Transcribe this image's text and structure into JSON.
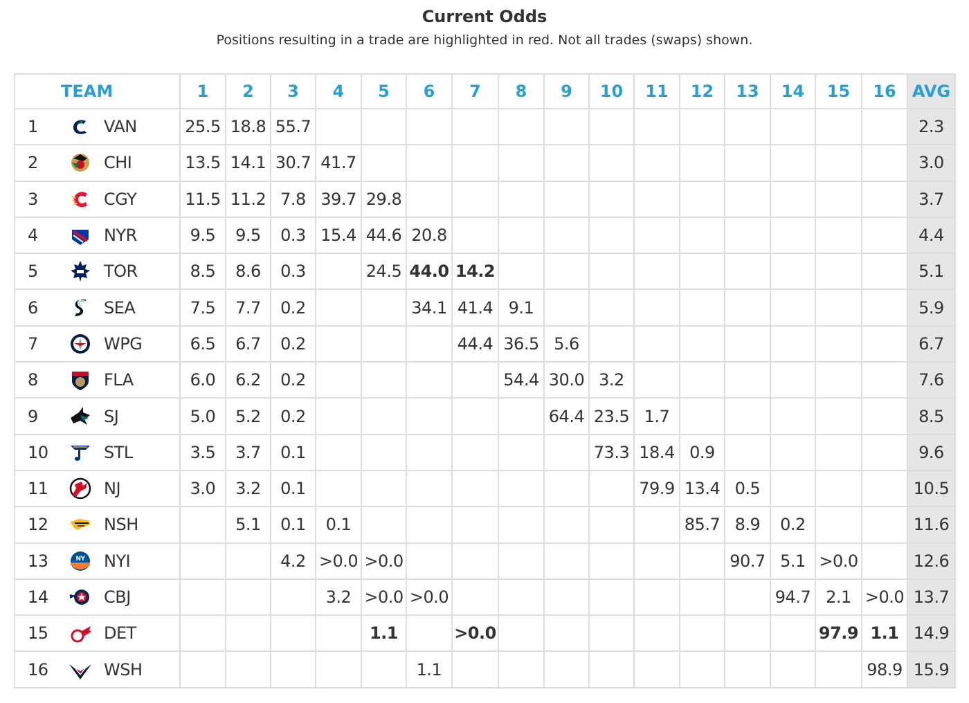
{
  "header": {
    "title": "Current Odds",
    "subtitle": "Positions resulting in a trade are highlighted in red. Not all trades (swaps) shown."
  },
  "table": {
    "columns": [
      "TEAM",
      "1",
      "2",
      "3",
      "4",
      "5",
      "6",
      "7",
      "8",
      "9",
      "10",
      "11",
      "12",
      "13",
      "14",
      "15",
      "16",
      "AVG"
    ],
    "trade_color": "#d0021b",
    "header_color": "#2a9fd6",
    "rows": [
      {
        "rank": "1",
        "team": "VAN",
        "logo": "canucks-logo-icon",
        "cells": [
          "25.5",
          "18.8",
          "55.7",
          "",
          "",
          "",
          "",
          "",
          "",
          "",
          "",
          "",
          "",
          "",
          "",
          ""
        ],
        "trade": [],
        "avg": "2.3"
      },
      {
        "rank": "2",
        "team": "CHI",
        "logo": "blackhawks-logo-icon",
        "cells": [
          "13.5",
          "14.1",
          "30.7",
          "41.7",
          "",
          "",
          "",
          "",
          "",
          "",
          "",
          "",
          "",
          "",
          "",
          ""
        ],
        "trade": [],
        "avg": "3.0"
      },
      {
        "rank": "3",
        "team": "CGY",
        "logo": "flames-logo-icon",
        "cells": [
          "11.5",
          "11.2",
          "7.8",
          "39.7",
          "29.8",
          "",
          "",
          "",
          "",
          "",
          "",
          "",
          "",
          "",
          "",
          ""
        ],
        "trade": [],
        "avg": "3.7"
      },
      {
        "rank": "4",
        "team": "NYR",
        "logo": "rangers-logo-icon",
        "cells": [
          "9.5",
          "9.5",
          "0.3",
          "15.4",
          "44.6",
          "20.8",
          "",
          "",
          "",
          "",
          "",
          "",
          "",
          "",
          "",
          ""
        ],
        "trade": [],
        "avg": "4.4"
      },
      {
        "rank": "5",
        "team": "TOR",
        "logo": "maple-leafs-logo-icon",
        "cells": [
          "8.5",
          "8.6",
          "0.3",
          "",
          "24.5",
          "44.0",
          "14.2",
          "",
          "",
          "",
          "",
          "",
          "",
          "",
          "",
          ""
        ],
        "trade": [
          5,
          6
        ],
        "avg": "5.1"
      },
      {
        "rank": "6",
        "team": "SEA",
        "logo": "kraken-logo-icon",
        "cells": [
          "7.5",
          "7.7",
          "0.2",
          "",
          "",
          "34.1",
          "41.4",
          "9.1",
          "",
          "",
          "",
          "",
          "",
          "",
          "",
          ""
        ],
        "trade": [],
        "avg": "5.9"
      },
      {
        "rank": "7",
        "team": "WPG",
        "logo": "jets-logo-icon",
        "cells": [
          "6.5",
          "6.7",
          "0.2",
          "",
          "",
          "",
          "44.4",
          "36.5",
          "5.6",
          "",
          "",
          "",
          "",
          "",
          "",
          ""
        ],
        "trade": [],
        "avg": "6.7"
      },
      {
        "rank": "8",
        "team": "FLA",
        "logo": "panthers-logo-icon",
        "cells": [
          "6.0",
          "6.2",
          "0.2",
          "",
          "",
          "",
          "",
          "54.4",
          "30.0",
          "3.2",
          "",
          "",
          "",
          "",
          "",
          ""
        ],
        "trade": [],
        "avg": "7.6"
      },
      {
        "rank": "9",
        "team": "SJ",
        "logo": "sharks-logo-icon",
        "cells": [
          "5.0",
          "5.2",
          "0.2",
          "",
          "",
          "",
          "",
          "",
          "64.4",
          "23.5",
          "1.7",
          "",
          "",
          "",
          "",
          ""
        ],
        "trade": [],
        "avg": "8.5"
      },
      {
        "rank": "10",
        "team": "STL",
        "logo": "blues-logo-icon",
        "cells": [
          "3.5",
          "3.7",
          "0.1",
          "",
          "",
          "",
          "",
          "",
          "",
          "73.3",
          "18.4",
          "0.9",
          "",
          "",
          "",
          ""
        ],
        "trade": [],
        "avg": "9.6"
      },
      {
        "rank": "11",
        "team": "NJ",
        "logo": "devils-logo-icon",
        "cells": [
          "3.0",
          "3.2",
          "0.1",
          "",
          "",
          "",
          "",
          "",
          "",
          "",
          "79.9",
          "13.4",
          "0.5",
          "",
          "",
          ""
        ],
        "trade": [],
        "avg": "10.5"
      },
      {
        "rank": "12",
        "team": "NSH",
        "logo": "predators-logo-icon",
        "cells": [
          "",
          "5.1",
          "0.1",
          "0.1",
          "",
          "",
          "",
          "",
          "",
          "",
          "",
          "85.7",
          "8.9",
          "0.2",
          "",
          ""
        ],
        "trade": [],
        "avg": "11.6"
      },
      {
        "rank": "13",
        "team": "NYI",
        "logo": "islanders-logo-icon",
        "cells": [
          "",
          "",
          "4.2",
          ">0.0",
          ">0.0",
          "",
          "",
          "",
          "",
          "",
          "",
          "",
          "90.7",
          "5.1",
          ">0.0",
          ""
        ],
        "trade": [],
        "avg": "12.6"
      },
      {
        "rank": "14",
        "team": "CBJ",
        "logo": "blue-jackets-logo-icon",
        "cells": [
          "",
          "",
          "",
          "3.2",
          ">0.0",
          ">0.0",
          "",
          "",
          "",
          "",
          "",
          "",
          "",
          "94.7",
          "2.1",
          ">0.0"
        ],
        "trade": [],
        "avg": "13.7"
      },
      {
        "rank": "15",
        "team": "DET",
        "logo": "red-wings-logo-icon",
        "cells": [
          "",
          "",
          "",
          "",
          "1.1",
          "",
          ">0.0",
          "",
          "",
          "",
          "",
          "",
          "",
          "",
          "97.9",
          "1.1"
        ],
        "trade": [
          4,
          6,
          14,
          15
        ],
        "avg": "14.9"
      },
      {
        "rank": "16",
        "team": "WSH",
        "logo": "capitals-logo-icon",
        "cells": [
          "",
          "",
          "",
          "",
          "",
          "1.1",
          "",
          "",
          "",
          "",
          "",
          "",
          "",
          "",
          "",
          "98.9"
        ],
        "trade": [],
        "avg": "15.9"
      }
    ]
  }
}
